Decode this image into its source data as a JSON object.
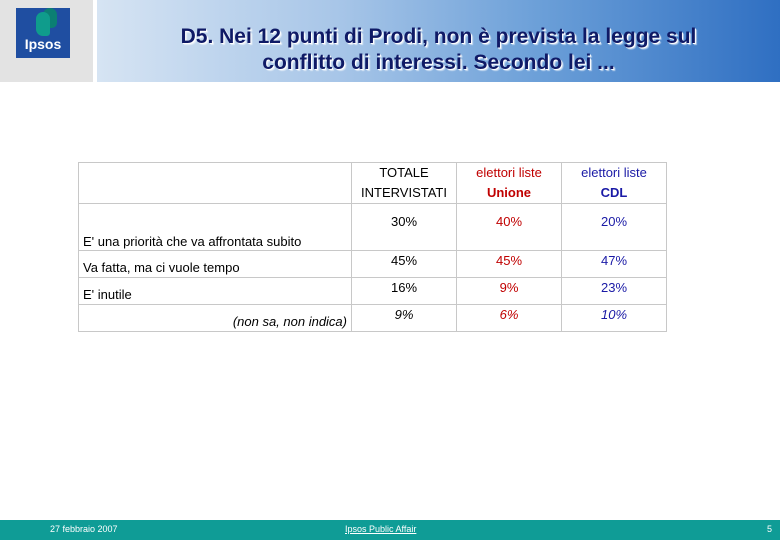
{
  "header": {
    "logo_text": "Ipsos",
    "title_line1": "D5. Nei 12 punti di Prodi, non è prevista la legge sul",
    "title_line2": "conflitto di interessi. Secondo lei ..."
  },
  "table": {
    "columns": [
      {
        "line1": "TOTALE",
        "line2": "INTERVISTATI"
      },
      {
        "line1": "elettori liste",
        "line2": "Unione"
      },
      {
        "line1": "elettori liste",
        "line2": "CDL"
      }
    ],
    "rows": [
      {
        "label": "E' una priorità che va affrontata subito",
        "values": [
          "30%",
          "40%",
          "20%"
        ]
      },
      {
        "label": "Va fatta, ma ci vuole tempo",
        "values": [
          "45%",
          "45%",
          "47%"
        ]
      },
      {
        "label": "E' inutile",
        "values": [
          "16%",
          "9%",
          "23%"
        ]
      },
      {
        "label": "(non sa, non indica)",
        "values": [
          "9%",
          "6%",
          "10%"
        ]
      }
    ]
  },
  "colors": {
    "unione": "#c00000",
    "cdl": "#1a1aa6",
    "footer": "#0f9c96",
    "title": "#0f1a66"
  },
  "footer": {
    "date": "27 febbraio 2007",
    "brand": "Ipsos Public Affair",
    "page": "5"
  }
}
